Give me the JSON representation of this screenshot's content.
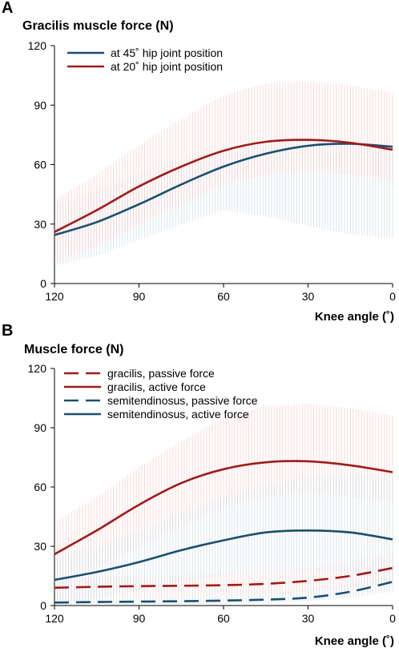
{
  "chart_data": [
    {
      "type": "line",
      "panel": "A",
      "title": "Gracilis muscle force (N)",
      "xlabel": "Knee angle (˚)",
      "ylabel": "",
      "xlim": [
        120,
        0
      ],
      "x_reversed": true,
      "ylim": [
        0,
        120
      ],
      "xticks": [
        "120",
        "90",
        "60",
        "30",
        "0"
      ],
      "yticks": [
        "0",
        "30",
        "60",
        "90",
        "120"
      ],
      "legend_position": "top-left",
      "x": [
        120,
        105,
        90,
        75,
        60,
        45,
        30,
        15,
        0
      ],
      "series": [
        {
          "name": "at 45˚ hip joint position",
          "color": "#1b4f6e",
          "dash": "solid",
          "values": [
            24.5,
            31,
            40,
            50,
            59,
            65.5,
            69.5,
            70.5,
            69
          ],
          "band_color": "#cdd8e2",
          "band_lower": [
            9,
            14,
            22,
            30,
            37,
            34,
            29,
            25,
            23
          ],
          "band_upper": [
            39,
            47,
            56,
            63,
            68,
            70.5,
            71,
            70.5,
            69
          ]
        },
        {
          "name": "at 20˚ hip joint position",
          "color": "#9e1b1b",
          "dash": "solid",
          "values": [
            26,
            37,
            49,
            59,
            67,
            71.5,
            72.5,
            71,
            67.5
          ],
          "band_color": "#f4c9c9",
          "band_lower": [
            10,
            19,
            30,
            40,
            50,
            55,
            57,
            55,
            52
          ],
          "band_upper": [
            42,
            55,
            70,
            83,
            95,
            101,
            102,
            100,
            96
          ]
        }
      ]
    },
    {
      "type": "line",
      "panel": "B",
      "title": "Muscle force (N)",
      "xlabel": "Knee angle (˚)",
      "ylabel": "",
      "xlim": [
        120,
        0
      ],
      "x_reversed": true,
      "ylim": [
        0,
        120
      ],
      "xticks": [
        "120",
        "90",
        "60",
        "30",
        "0"
      ],
      "yticks": [
        "0",
        "30",
        "60",
        "90",
        "120"
      ],
      "legend_position": "top-left",
      "x": [
        120,
        105,
        90,
        75,
        60,
        45,
        30,
        15,
        0
      ],
      "series": [
        {
          "name": "gracilis, passive force",
          "color": "#9e1b1b",
          "dash": "dashed",
          "values": [
            9,
            9.5,
            9.8,
            10,
            10.3,
            11,
            12.5,
            15,
            19
          ],
          "band_color": "#f4c9c9",
          "band_lower": [
            4,
            4.5,
            5,
            5,
            5.5,
            6,
            7,
            9,
            12
          ],
          "band_upper": [
            14,
            14.5,
            15,
            15.5,
            16,
            17,
            19,
            22,
            27
          ]
        },
        {
          "name": "gracilis, active force",
          "color": "#9e1b1b",
          "dash": "solid",
          "values": [
            26,
            38,
            51,
            62,
            69,
            72.5,
            73,
            71,
            67.5
          ],
          "band_color": "#f4c9c9",
          "band_lower": [
            10,
            19,
            30,
            40,
            50,
            55,
            57,
            55,
            52
          ],
          "band_upper": [
            42,
            55,
            70,
            83,
            95,
            101,
            102,
            100,
            96
          ]
        },
        {
          "name": "semitendinosus, passive force",
          "color": "#1b4f6e",
          "dash": "dashed",
          "values": [
            1.5,
            1.8,
            2,
            2.2,
            2.5,
            3,
            4,
            7,
            12
          ],
          "band_color": "#cdd8e2",
          "band_lower": [
            0.5,
            0.5,
            0.5,
            0.8,
            1,
            1.2,
            2,
            4,
            7
          ],
          "band_upper": [
            4,
            4.5,
            4.8,
            5,
            5.5,
            6.5,
            8,
            11,
            17
          ]
        },
        {
          "name": "semitendinosus, active force",
          "color": "#1b4f6e",
          "dash": "solid",
          "values": [
            13,
            17,
            22,
            28,
            33,
            37,
            38,
            37,
            33.5
          ],
          "band_color": "#cdd8e2",
          "band_lower": [
            1,
            4,
            8,
            12,
            15,
            17,
            18,
            17,
            15
          ],
          "band_upper": [
            24,
            30,
            38,
            47,
            55,
            61,
            65,
            66,
            64
          ]
        }
      ]
    }
  ]
}
